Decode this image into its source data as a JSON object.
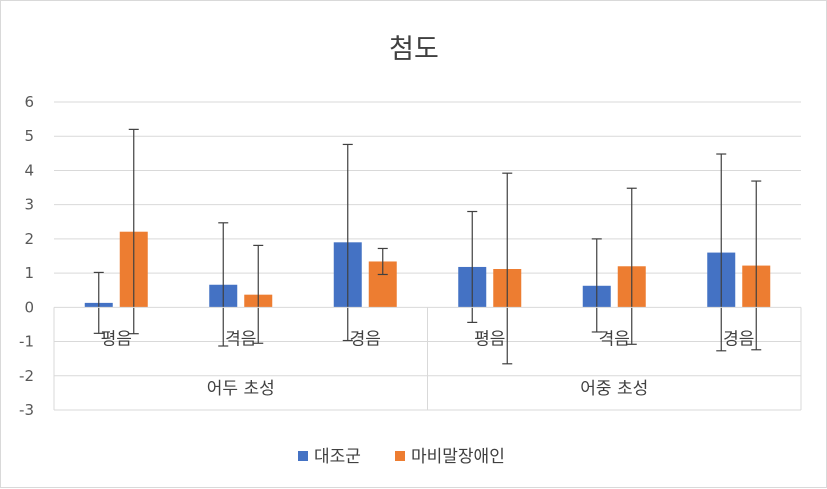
{
  "chart_data": {
    "type": "bar",
    "title": "첨도",
    "ylim": [
      -3,
      6
    ],
    "yticks": [
      -3,
      -2,
      -1,
      0,
      1,
      2,
      3,
      4,
      5,
      6
    ],
    "grid": true,
    "legend_position": "bottom",
    "groups": [
      {
        "label": "어두 초성",
        "categories": [
          "평음",
          "격음",
          "경음"
        ]
      },
      {
        "label": "어중 초성",
        "categories": [
          "평음",
          "격음",
          "경음"
        ]
      }
    ],
    "categories": [
      "평음",
      "격음",
      "경음",
      "평음",
      "격음",
      "경음"
    ],
    "series": [
      {
        "name": "대조군",
        "color": "#4472C4",
        "values": [
          0.13,
          0.66,
          1.9,
          1.18,
          0.63,
          1.6
        ],
        "error_upper": [
          1.02,
          2.47,
          4.76,
          2.8,
          2.0,
          4.48
        ],
        "error_lower": [
          -0.76,
          -1.13,
          -0.97,
          -0.44,
          -0.72,
          -1.27
        ]
      },
      {
        "name": "마비말장애인",
        "color": "#ED7D31",
        "values": [
          2.21,
          0.37,
          1.34,
          1.12,
          1.2,
          1.22
        ],
        "error_upper": [
          5.2,
          1.81,
          1.72,
          3.92,
          3.48,
          3.69
        ],
        "error_lower": [
          -0.77,
          -1.05,
          0.96,
          -1.65,
          -1.08,
          -1.24
        ]
      }
    ]
  }
}
